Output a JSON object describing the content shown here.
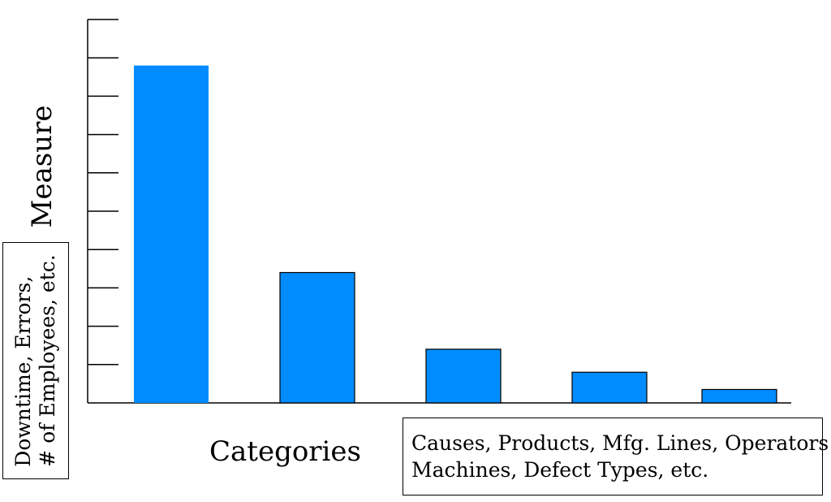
{
  "chart_data": {
    "type": "bar",
    "title": "",
    "ylabel": "Measure",
    "xlabel": "Categories",
    "ylim": [
      0,
      10
    ],
    "y_ticks": [
      0,
      1,
      2,
      3,
      4,
      5,
      6,
      7,
      8,
      9,
      10
    ],
    "categories": [
      "",
      "",
      "",
      "",
      ""
    ],
    "values": [
      8.8,
      3.4,
      1.4,
      0.8,
      0.35
    ],
    "bar_color": "#008cff",
    "grid": false
  },
  "annotations": {
    "y_description": [
      "Downtime, Errors,",
      "# of Employees, etc."
    ],
    "x_description": [
      "Causes, Products, Mfg. Lines, Operators",
      "Machines, Defect Types, etc."
    ]
  }
}
